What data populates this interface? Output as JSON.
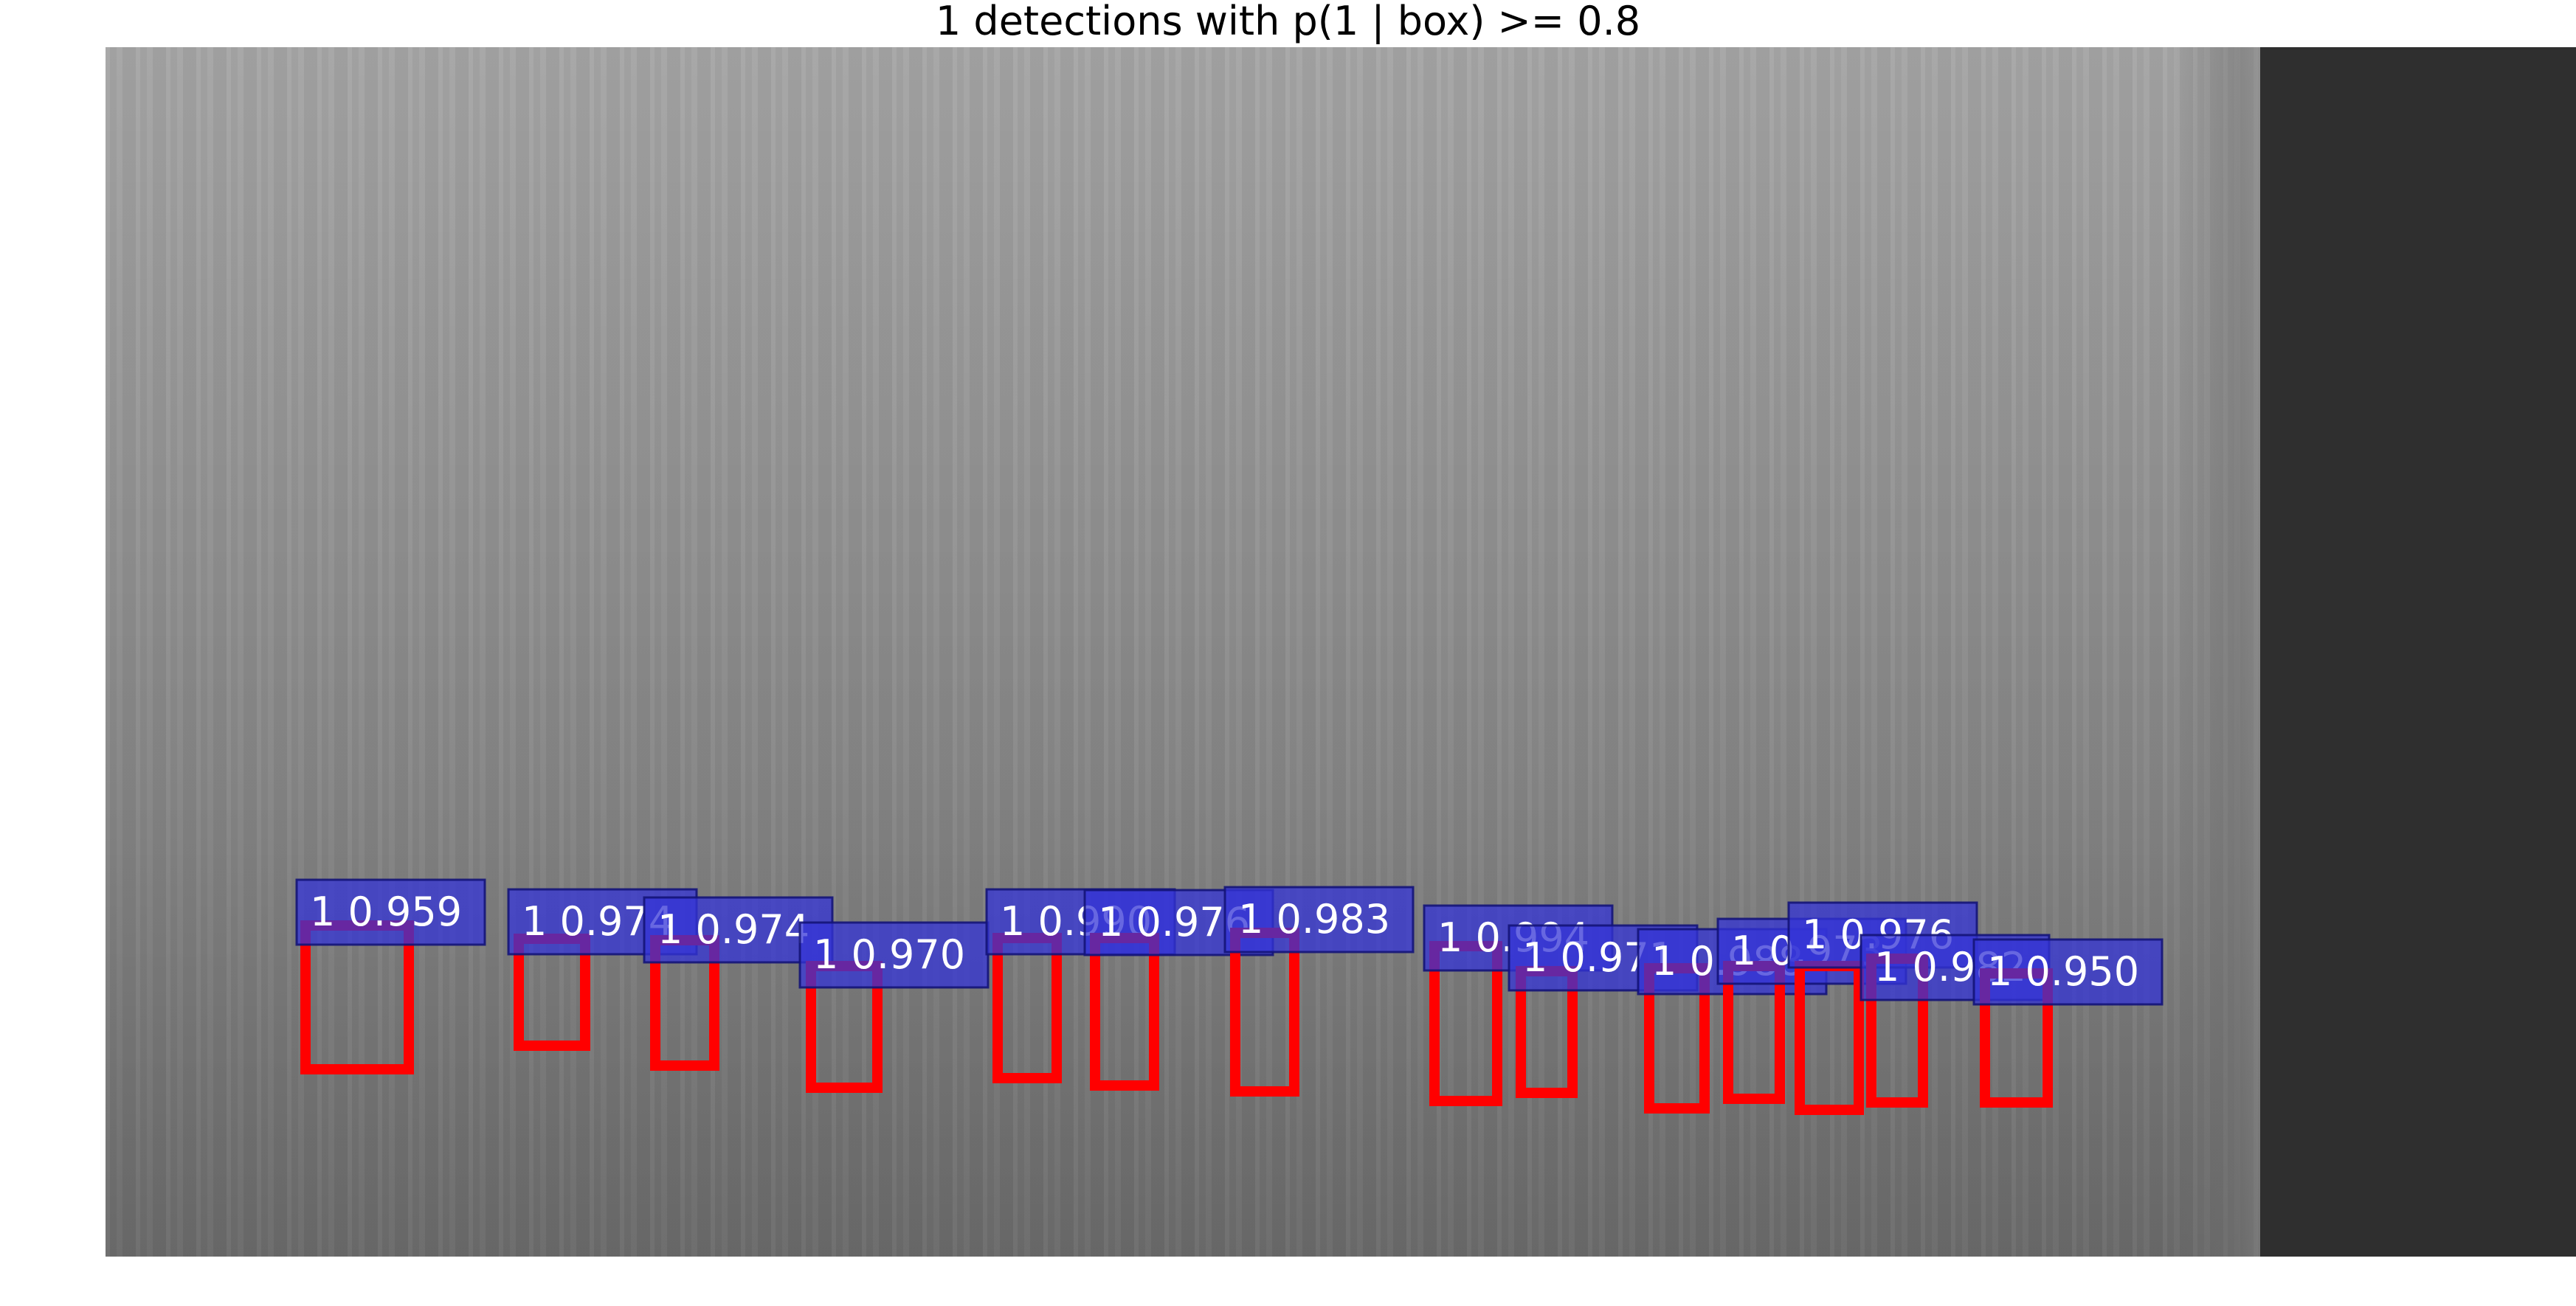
{
  "title": "1 detections with p(1 | box) >= 0.8",
  "colors": {
    "box_stroke": "#ff0000",
    "label_fill": "#3434d7",
    "label_text": "#ffffff"
  },
  "detections": [
    {
      "label": "1 0.959"
    },
    {
      "label": "1 0.974"
    },
    {
      "label": "1 0.974"
    },
    {
      "label": "1 0.970"
    },
    {
      "label": "1 0.990"
    },
    {
      "label": "1 0.976"
    },
    {
      "label": "1 0.983"
    },
    {
      "label": "1 0.994"
    },
    {
      "label": "1 0.971"
    },
    {
      "label": "1 0.988"
    },
    {
      "label": "1 0.973"
    },
    {
      "label": "1 0.976"
    },
    {
      "label": "1 0.982"
    },
    {
      "label": "1 0.950"
    }
  ]
}
